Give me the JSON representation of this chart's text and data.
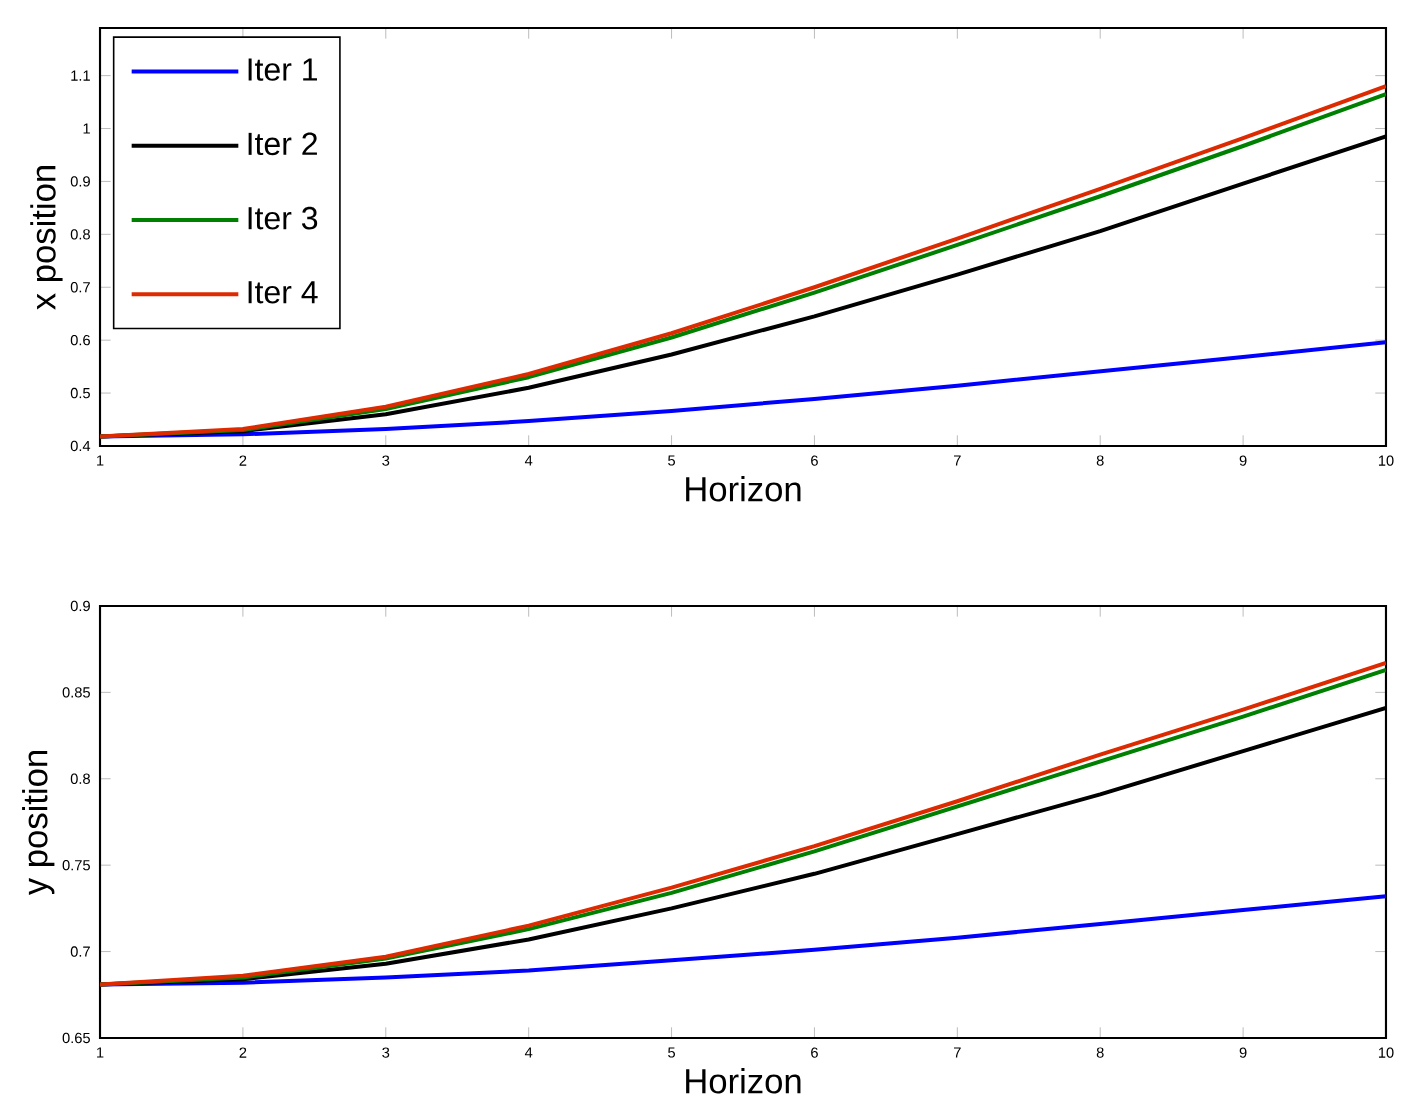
{
  "chart_data": [
    {
      "type": "line",
      "xlabel": "Horizon",
      "ylabel": "x position",
      "x": [
        1,
        2,
        3,
        4,
        5,
        6,
        7,
        8,
        9,
        10
      ],
      "xlim": [
        1,
        10
      ],
      "xticks": [
        1,
        2,
        3,
        4,
        5,
        6,
        7,
        8,
        9,
        10
      ],
      "ylim": [
        0.4,
        1.19
      ],
      "yticks": [
        0.4,
        0.5,
        0.6,
        0.7,
        0.8,
        0.9,
        1,
        1.1
      ],
      "legend": "top left",
      "marker": "none",
      "line_style": "solid",
      "series": [
        {
          "name": "Iter 1",
          "color": "#0000ff",
          "values": [
            0.418,
            0.422,
            0.432,
            0.447,
            0.466,
            0.489,
            0.514,
            0.541,
            0.568,
            0.596
          ]
        },
        {
          "name": "Iter 2",
          "color": "#000000",
          "values": [
            0.418,
            0.428,
            0.46,
            0.51,
            0.573,
            0.645,
            0.724,
            0.806,
            0.896,
            0.985
          ]
        },
        {
          "name": "Iter 3",
          "color": "#008000",
          "values": [
            0.418,
            0.43,
            0.47,
            0.53,
            0.605,
            0.69,
            0.78,
            0.872,
            0.967,
            1.065
          ]
        },
        {
          "name": "Iter 4",
          "color": "#dd2a00",
          "values": [
            0.418,
            0.432,
            0.474,
            0.536,
            0.613,
            0.7,
            0.792,
            0.886,
            0.982,
            1.08
          ]
        }
      ]
    },
    {
      "type": "line",
      "xlabel": "Horizon",
      "ylabel": "y position",
      "x": [
        1,
        2,
        3,
        4,
        5,
        6,
        7,
        8,
        9,
        10
      ],
      "xlim": [
        1,
        10
      ],
      "xticks": [
        1,
        2,
        3,
        4,
        5,
        6,
        7,
        8,
        9,
        10
      ],
      "ylim": [
        0.65,
        0.9
      ],
      "yticks": [
        0.65,
        0.7,
        0.75,
        0.8,
        0.85,
        0.9
      ],
      "marker": "none",
      "line_style": "solid",
      "series": [
        {
          "color": "#0000ff",
          "values": [
            0.681,
            0.682,
            0.685,
            0.689,
            0.695,
            0.701,
            0.708,
            0.716,
            0.724,
            0.732
          ]
        },
        {
          "color": "#000000",
          "values": [
            0.681,
            0.684,
            0.693,
            0.707,
            0.725,
            0.745,
            0.768,
            0.791,
            0.816,
            0.841
          ]
        },
        {
          "color": "#008000",
          "values": [
            0.681,
            0.685,
            0.696,
            0.713,
            0.734,
            0.758,
            0.784,
            0.81,
            0.836,
            0.863
          ]
        },
        {
          "color": "#dd2a00",
          "values": [
            0.681,
            0.686,
            0.697,
            0.715,
            0.737,
            0.761,
            0.787,
            0.814,
            0.84,
            0.867
          ]
        }
      ]
    }
  ]
}
